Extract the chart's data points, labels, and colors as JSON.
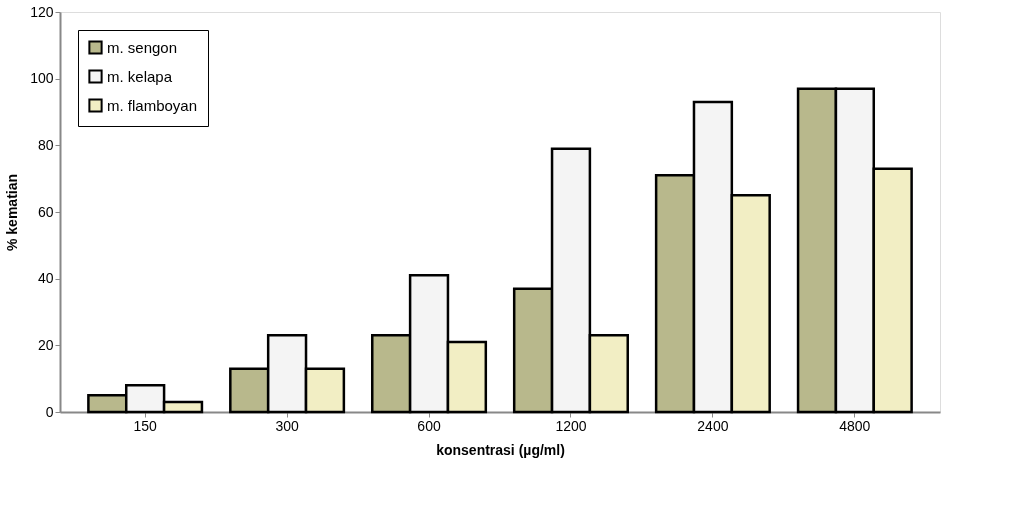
{
  "chart_data": {
    "type": "bar",
    "xlabel": "konsentrasi (µg/ml)",
    "ylabel": "% kematian",
    "categories": [
      "150",
      "300",
      "600",
      "1200",
      "2400",
      "4800"
    ],
    "series": [
      {
        "name": "m. sengon",
        "color": "#b8b88c",
        "values": [
          5,
          13,
          23,
          37,
          71,
          97
        ]
      },
      {
        "name": "m. kelapa",
        "color": "#f4f4f4",
        "values": [
          8,
          23,
          41,
          79,
          93,
          97
        ]
      },
      {
        "name": "m. flamboyan",
        "color": "#f2eec4",
        "values": [
          3,
          13,
          21,
          23,
          65,
          73
        ]
      }
    ],
    "ylim": [
      0,
      120
    ],
    "yticks": [
      0,
      20,
      40,
      60,
      80,
      100,
      120
    ],
    "grid": false,
    "legend": "top left"
  }
}
